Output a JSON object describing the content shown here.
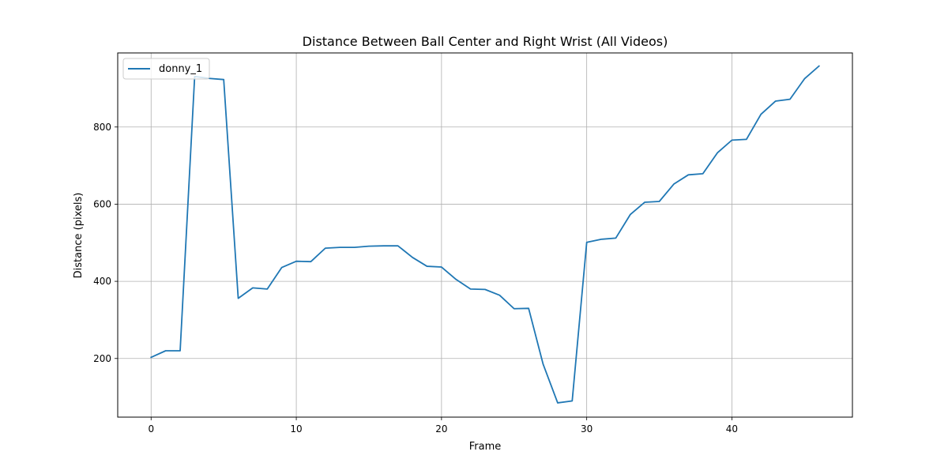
{
  "chart_data": {
    "type": "line",
    "title": "Distance Between Ball Center and Right Wrist (All Videos)",
    "xlabel": "Frame",
    "ylabel": "Distance (pixels)",
    "xlim": [
      -2.3,
      48.3
    ],
    "ylim": [
      48,
      992
    ],
    "xticks": [
      0,
      10,
      20,
      30,
      40
    ],
    "yticks": [
      200,
      400,
      600,
      800
    ],
    "grid": true,
    "legend_position": "top-left",
    "series": [
      {
        "name": "donny_1",
        "color": "#1f77b4",
        "x": [
          0,
          1,
          2,
          3,
          4,
          5,
          6,
          7,
          8,
          9,
          10,
          11,
          12,
          13,
          14,
          15,
          16,
          17,
          18,
          19,
          20,
          21,
          22,
          23,
          24,
          25,
          26,
          27,
          28,
          29,
          30,
          31,
          32,
          33,
          34,
          35,
          36,
          37,
          38,
          39,
          40,
          41,
          42,
          43,
          44,
          45,
          46
        ],
        "y": [
          203,
          220,
          220,
          931,
          926,
          923,
          356,
          383,
          380,
          436,
          452,
          451,
          486,
          488,
          488,
          491,
          492,
          492,
          462,
          439,
          437,
          405,
          380,
          379,
          364,
          329,
          330,
          185,
          85,
          90,
          501,
          509,
          512,
          573,
          605,
          607,
          652,
          676,
          679,
          733,
          766,
          768,
          833,
          867,
          872,
          925,
          958
        ]
      }
    ]
  }
}
